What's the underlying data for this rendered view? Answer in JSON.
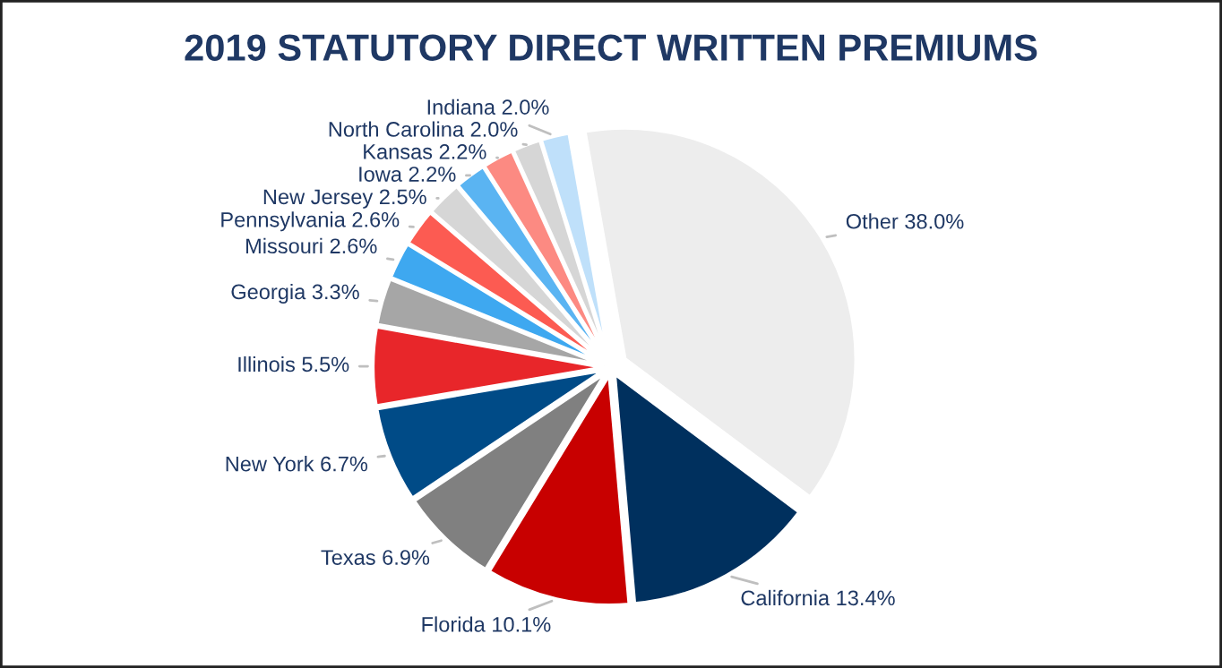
{
  "chart_data": {
    "type": "pie",
    "title": "2019 STATUTORY DIRECT WRITTEN PREMIUMS",
    "categories": [
      "Other",
      "California",
      "Florida",
      "Texas",
      "New York",
      "Illinois",
      "Georgia",
      "Missouri",
      "Pennsylvania",
      "New Jersey",
      "Iowa",
      "Kansas",
      "North Carolina",
      "Indiana"
    ],
    "values": [
      38.0,
      13.4,
      10.1,
      6.9,
      6.7,
      5.5,
      3.3,
      2.6,
      2.6,
      2.5,
      2.2,
      2.2,
      2.0,
      2.0
    ],
    "value_labels": [
      "38.0%",
      "13.4%",
      "10.1%",
      "6.9%",
      "6.7%",
      "5.5%",
      "3.3%",
      "2.6%",
      "2.6%",
      "2.5%",
      "2.2%",
      "2.2%",
      "2.0%",
      "2.0%"
    ],
    "colors": [
      "#ededed",
      "#00305e",
      "#c80000",
      "#808080",
      "#004b87",
      "#e8262a",
      "#a6a6a6",
      "#3ea8f0",
      "#fc5b52",
      "#d6d6d6",
      "#5ab4f2",
      "#fc8a82",
      "#d6d6d6",
      "#bfe0fa"
    ],
    "legend": false
  }
}
